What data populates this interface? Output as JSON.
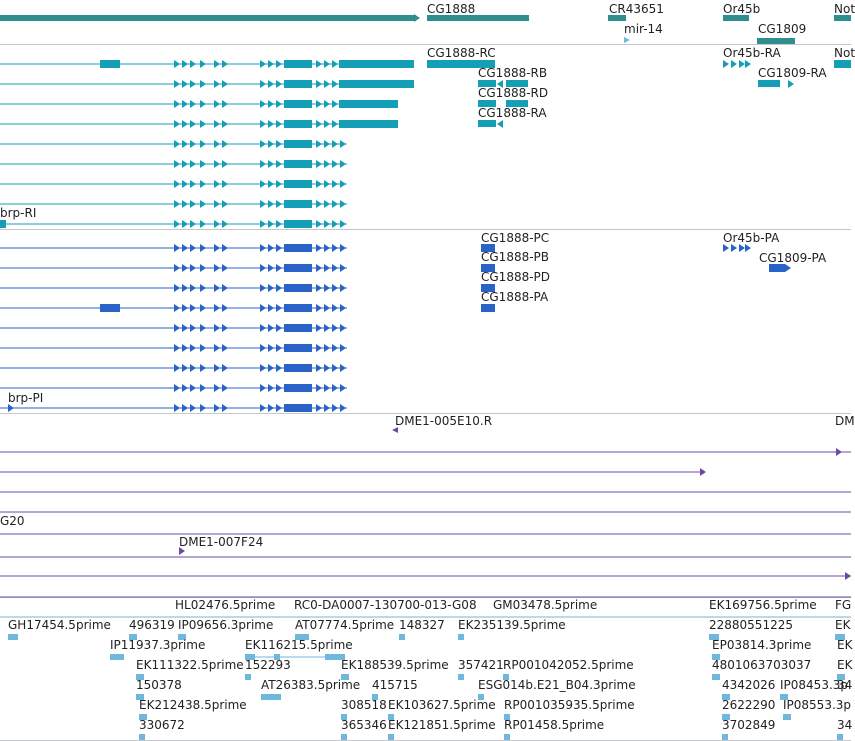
{
  "gene_track": {
    "labels": [
      "CG1888",
      "CR43651",
      "mir-14",
      "Or45b",
      "CG1809",
      "Not"
    ]
  },
  "transcripts_track": {
    "labels": [
      "CG1888-RC",
      "CG1888-RB",
      "CG1888-RD",
      "CG1888-RA",
      "brp-RI",
      "Or45b-RA",
      "CG1809-RA",
      "Not"
    ]
  },
  "cds_track": {
    "labels": [
      "CG1888-PC",
      "CG1888-PB",
      "CG1888-PD",
      "CG1888-PA",
      "brp-PI",
      "Or45b-PA",
      "CG1809-PA"
    ]
  },
  "bac_track": {
    "labels": [
      "DME1-005E10.R",
      "DM",
      "G20",
      "DME1-007F24"
    ]
  },
  "est_track": {
    "labels": [
      "HL02476.5prime",
      "RC0-DA0007-130700-013-G08",
      "GM03478.5prime",
      "EK169756.5prime",
      "FG",
      "GH17454.5prime",
      "496319",
      "IP09656.3prime",
      "AT07774.5prime",
      "148327",
      "EK235139.5prime",
      "22880551225",
      "EK",
      "IP11937.3prime",
      "EK116215.5prime",
      "EP03814.3prime",
      "EK111322.5prime",
      "152293",
      "EK188539.5prime",
      "357421",
      "RP001042052.5prime",
      "4801063703037",
      "EK",
      "150378",
      "AT26383.5prime",
      "415715",
      "ESG014b.E21_B04.3prime",
      "4342026",
      "IP08453.3p",
      "EK212438.5prime",
      "308518",
      "EK103627.5prime",
      "RP001035935.5prime",
      "2622290",
      "IP08553.3p",
      "330672",
      "365346",
      "EK121851.5prime",
      "RP01458.5prime",
      "3702849",
      "34",
      "34",
      "EK"
    ]
  },
  "colors": {
    "gene": "#2f8f8f",
    "transcript": "#149fb6",
    "cds": "#2a63c8",
    "bac": "#6e4aa6",
    "est": "#6fb7db",
    "separator": "#c4c8cc"
  }
}
